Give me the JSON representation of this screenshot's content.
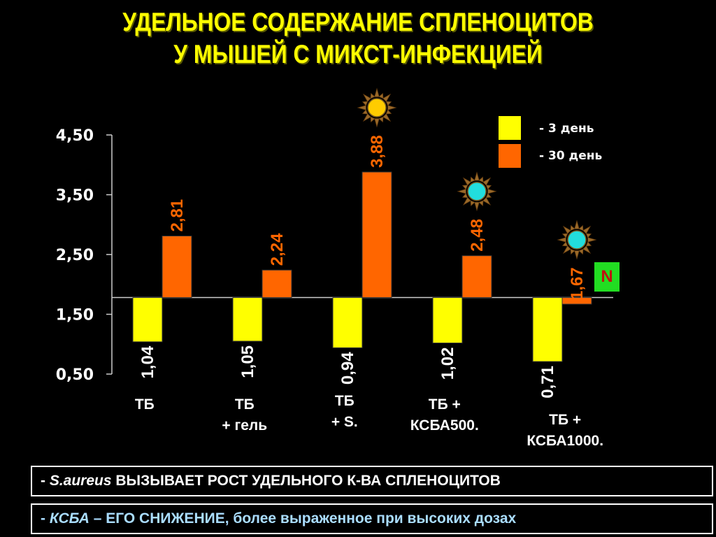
{
  "title": {
    "line1": "УДЕЛЬНОЕ СОДЕРЖАНИЕ СПЛЕНОЦИТОВ",
    "line2": "У МЫШЕЙ С МИКСТ-ИНФЕКЦИЕЙ"
  },
  "legend": {
    "items": [
      {
        "label": "- 3 день",
        "color": "#ffff00"
      },
      {
        "label": "- 30 день",
        "color": "#ff6600"
      }
    ]
  },
  "badge": {
    "text": "N"
  },
  "notes": {
    "line1": {
      "prefix": "- ",
      "italic": "S.aureus",
      "rest": " ВЫЗЫВАЕТ РОСТ УДЕЛЬНОГО К-ВА СПЛЕНОЦИТОВ"
    },
    "line2": {
      "prefix": "- ",
      "italic": "КСБА",
      "rest": " – ЕГО СНИЖЕНИЕ, более выраженное при высоких дозах"
    }
  },
  "chart_data": {
    "type": "bar",
    "baseline": 1.78,
    "ylim": [
      0.5,
      4.5
    ],
    "yticks": [
      "4,50",
      "3,50",
      "2,50",
      "1,50",
      "0,50"
    ],
    "ytick_values": [
      4.5,
      3.5,
      2.5,
      1.5,
      0.5
    ],
    "categories": [
      "ТБ",
      "ТБ\n+ гель",
      "ТБ\n+ S.",
      "ТБ +\nКСБА500.",
      "ТБ +\nКСБА1000."
    ],
    "series": [
      {
        "name": "- 3 день",
        "color": "#ffff00",
        "values": [
          1.04,
          1.05,
          0.94,
          1.02,
          0.71
        ],
        "labels": [
          "1,04",
          "1,05",
          "0,94",
          "1,02",
          "0,71"
        ]
      },
      {
        "name": "- 30 день",
        "color": "#ff6600",
        "values": [
          2.81,
          2.24,
          3.88,
          2.48,
          1.67
        ],
        "labels": [
          "2,81",
          "2,24",
          "3,88",
          "2,48",
          "1,67"
        ]
      }
    ],
    "markers": [
      {
        "category_index": 2,
        "icon": "sun-icon",
        "color": "#ffcc00"
      },
      {
        "category_index": 3,
        "icon": "cyan-sun-icon",
        "color": "#22dddd"
      },
      {
        "category_index": 4,
        "icon": "cyan-sun-icon",
        "color": "#22dddd"
      }
    ]
  }
}
